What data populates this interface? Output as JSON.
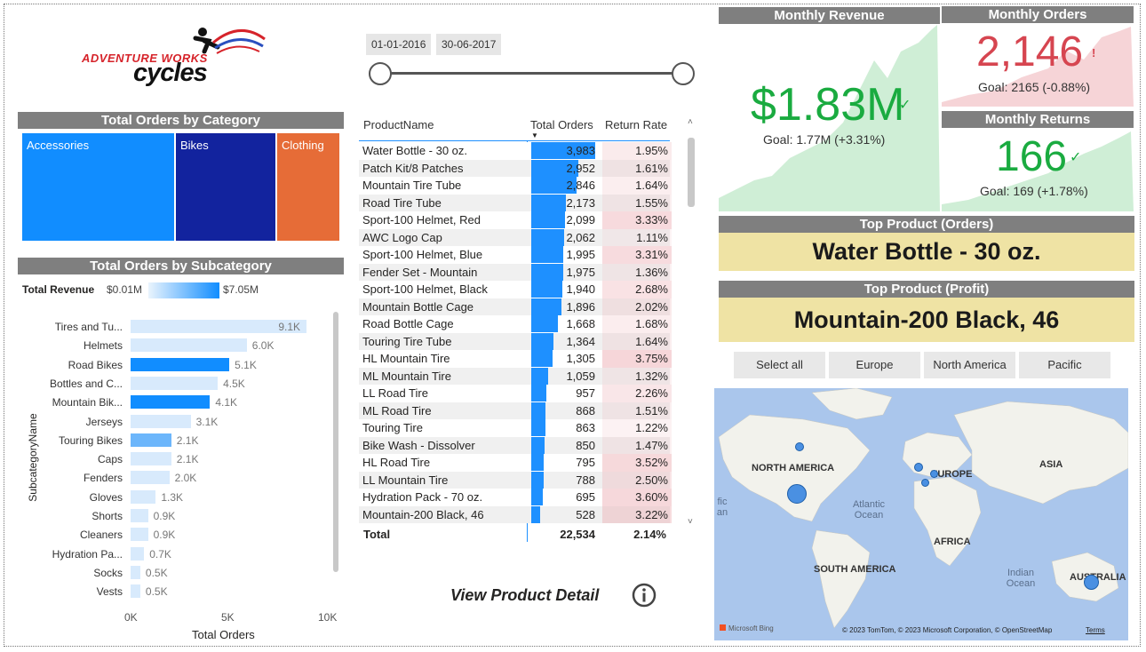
{
  "logo": {
    "line1": "ADVENTURE WORKS",
    "line2": "cycles"
  },
  "category": {
    "title": "Total Orders by Category",
    "items": [
      {
        "label": "Accessories",
        "color": "#118dff"
      },
      {
        "label": "Bikes",
        "color": "#12239e"
      },
      {
        "label": "Clothing",
        "color": "#e66c37"
      }
    ]
  },
  "subcategory": {
    "title": "Total Orders by Subcategory",
    "legend_title": "Total Revenue",
    "legend_min": "$0.01M",
    "legend_max": "$7.05M",
    "y_axis_title": "SubcategoryName",
    "x_axis_title": "Total Orders"
  },
  "chart_data": {
    "type": "bar",
    "categories": [
      "Tires and Tu...",
      "Helmets",
      "Road Bikes",
      "Bottles and C...",
      "Mountain Bik...",
      "Jerseys",
      "Touring Bikes",
      "Caps",
      "Fenders",
      "Gloves",
      "Shorts",
      "Cleaners",
      "Hydration Pa...",
      "Socks",
      "Vests"
    ],
    "values": [
      9100,
      6000,
      5100,
      4500,
      4100,
      3100,
      2100,
      2100,
      2000,
      1300,
      900,
      900,
      700,
      500,
      500
    ],
    "value_labels": [
      "9.1K",
      "6.0K",
      "5.1K",
      "4.5K",
      "4.1K",
      "3.1K",
      "2.1K",
      "2.1K",
      "2.0K",
      "1.3K",
      "0.9K",
      "0.9K",
      "0.7K",
      "0.5K",
      "0.5K"
    ],
    "bar_colors": [
      "#d8eafc",
      "#d8eafc",
      "#118dff",
      "#d8eafc",
      "#118dff",
      "#d8eafc",
      "#6cb6fb",
      "#d8eafc",
      "#d8eafc",
      "#d8eafc",
      "#d8eafc",
      "#d8eafc",
      "#d8eafc",
      "#d8eafc",
      "#d8eafc"
    ],
    "xlim": [
      0,
      10000
    ],
    "xticks": [
      "0K",
      "5K",
      "10K"
    ],
    "xlabel": "Total Orders",
    "ylabel": "SubcategoryName"
  },
  "date_slicer": {
    "start": "01-01-2016",
    "end": "30-06-2017"
  },
  "table": {
    "headers": {
      "product": "ProductName",
      "orders": "Total Orders",
      "return": "Return Rate"
    },
    "max_orders": 3983,
    "rows": [
      {
        "name": "Water Bottle - 30 oz.",
        "orders": 3983,
        "orders_label": "3,983",
        "rate": "1.95%",
        "rate_val": 1.95
      },
      {
        "name": "Patch Kit/8 Patches",
        "orders": 2952,
        "orders_label": "2,952",
        "rate": "1.61%",
        "rate_val": 1.61
      },
      {
        "name": "Mountain Tire Tube",
        "orders": 2846,
        "orders_label": "2,846",
        "rate": "1.64%",
        "rate_val": 1.64
      },
      {
        "name": "Road Tire Tube",
        "orders": 2173,
        "orders_label": "2,173",
        "rate": "1.55%",
        "rate_val": 1.55
      },
      {
        "name": "Sport-100 Helmet, Red",
        "orders": 2099,
        "orders_label": "2,099",
        "rate": "3.33%",
        "rate_val": 3.33
      },
      {
        "name": "AWC Logo Cap",
        "orders": 2062,
        "orders_label": "2,062",
        "rate": "1.11%",
        "rate_val": 1.11
      },
      {
        "name": "Sport-100 Helmet, Blue",
        "orders": 1995,
        "orders_label": "1,995",
        "rate": "3.31%",
        "rate_val": 3.31
      },
      {
        "name": "Fender Set - Mountain",
        "orders": 1975,
        "orders_label": "1,975",
        "rate": "1.36%",
        "rate_val": 1.36
      },
      {
        "name": "Sport-100 Helmet, Black",
        "orders": 1940,
        "orders_label": "1,940",
        "rate": "2.68%",
        "rate_val": 2.68
      },
      {
        "name": "Mountain Bottle Cage",
        "orders": 1896,
        "orders_label": "1,896",
        "rate": "2.02%",
        "rate_val": 2.02
      },
      {
        "name": "Road Bottle Cage",
        "orders": 1668,
        "orders_label": "1,668",
        "rate": "1.68%",
        "rate_val": 1.68
      },
      {
        "name": "Touring Tire Tube",
        "orders": 1364,
        "orders_label": "1,364",
        "rate": "1.64%",
        "rate_val": 1.64
      },
      {
        "name": "HL Mountain Tire",
        "orders": 1305,
        "orders_label": "1,305",
        "rate": "3.75%",
        "rate_val": 3.75
      },
      {
        "name": "ML Mountain Tire",
        "orders": 1059,
        "orders_label": "1,059",
        "rate": "1.32%",
        "rate_val": 1.32
      },
      {
        "name": "LL Road Tire",
        "orders": 957,
        "orders_label": "957",
        "rate": "2.26%",
        "rate_val": 2.26
      },
      {
        "name": "ML Road Tire",
        "orders": 868,
        "orders_label": "868",
        "rate": "1.51%",
        "rate_val": 1.51
      },
      {
        "name": "Touring Tire",
        "orders": 863,
        "orders_label": "863",
        "rate": "1.22%",
        "rate_val": 1.22
      },
      {
        "name": "Bike Wash - Dissolver",
        "orders": 850,
        "orders_label": "850",
        "rate": "1.47%",
        "rate_val": 1.47
      },
      {
        "name": "HL Road Tire",
        "orders": 795,
        "orders_label": "795",
        "rate": "3.52%",
        "rate_val": 3.52
      },
      {
        "name": "LL Mountain Tire",
        "orders": 788,
        "orders_label": "788",
        "rate": "2.50%",
        "rate_val": 2.5
      },
      {
        "name": "Hydration Pack - 70 oz.",
        "orders": 695,
        "orders_label": "695",
        "rate": "3.60%",
        "rate_val": 3.6
      },
      {
        "name": "Mountain-200 Black, 46",
        "orders": 528,
        "orders_label": "528",
        "rate": "3.22%",
        "rate_val": 3.22
      }
    ],
    "total_label": "Total",
    "total_orders": "22,534",
    "total_rate": "2.14%"
  },
  "view_detail": {
    "label": "View Product Detail",
    "icon": "info-icon"
  },
  "kpi": {
    "revenue": {
      "title": "Monthly Revenue",
      "value": "$1.83M",
      "goal": "Goal: 1.77M (+3.31%)",
      "color": "#1aab40"
    },
    "orders": {
      "title": "Monthly Orders",
      "value": "2,146",
      "goal": "Goal: 2165 (-0.88%)",
      "color": "#d64550"
    },
    "returns": {
      "title": "Monthly Returns",
      "value": "166",
      "goal": "Goal: 169 (+1.78%)",
      "color": "#1aab40"
    }
  },
  "top_orders": {
    "title": "Top Product (Orders)",
    "value": "Water Bottle - 30 oz."
  },
  "top_profit": {
    "title": "Top Product (Profit)",
    "value": "Mountain-200 Black, 46"
  },
  "region_buttons": [
    "Select all",
    "Europe",
    "North America",
    "Pacific"
  ],
  "map": {
    "labels": {
      "na": "NORTH AMERICA",
      "eu": "EUROPE",
      "asia": "ASIA",
      "africa": "AFRICA",
      "sa": "SOUTH AMERICA",
      "au": "AUSTRALIA"
    },
    "oceans": {
      "atlantic": "Atlantic Ocean",
      "indian": "Indian Ocean",
      "pacific_frag": "fic an"
    },
    "attribution": "© 2023 TomTom, © 2023 Microsoft Corporation, © OpenStreetMap",
    "terms": "Terms",
    "brand": "Microsoft Bing"
  }
}
